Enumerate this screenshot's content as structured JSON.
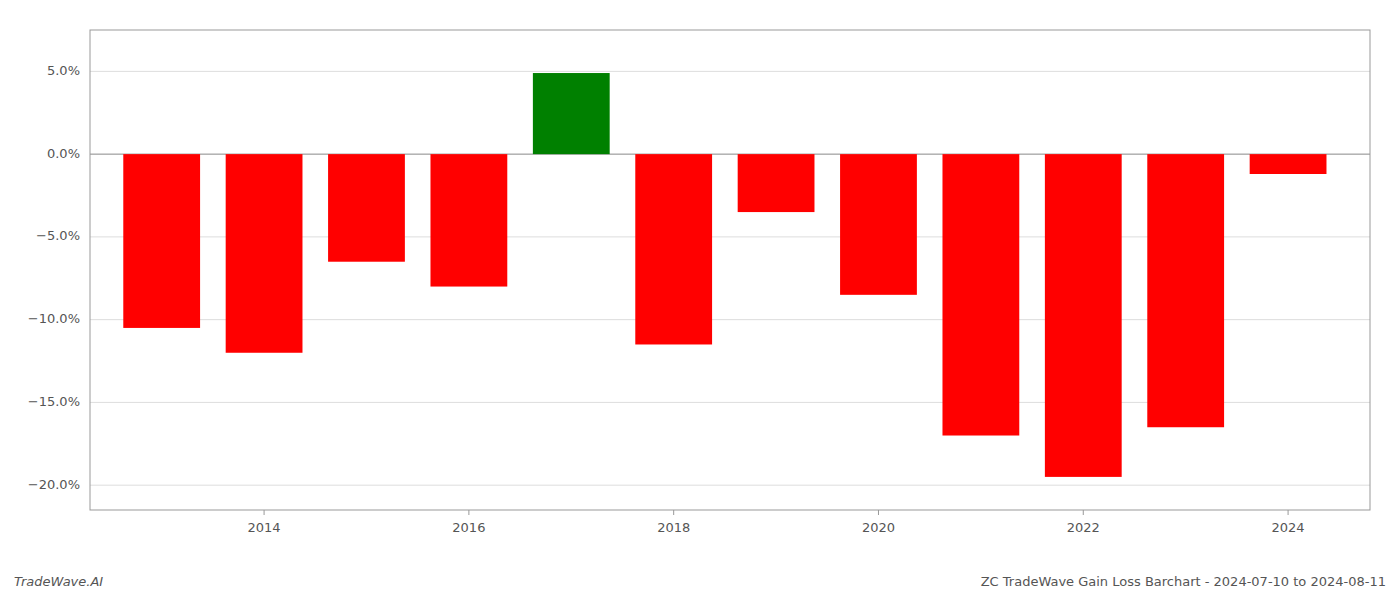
{
  "chart_data": {
    "type": "bar",
    "title": "ZC TradeWave Gain Loss Barchart - 2024-07-10 to 2024-08-11",
    "annotations": [
      "TradeWave.AI"
    ],
    "x": [
      2013,
      2014,
      2015,
      2016,
      2017,
      2018,
      2019,
      2020,
      2021,
      2022,
      2023,
      2024
    ],
    "values": [
      -10.5,
      -12.0,
      -6.5,
      -8.0,
      4.9,
      -11.5,
      -3.5,
      -8.5,
      -17.0,
      -19.5,
      -16.5,
      -1.2
    ],
    "colors": [
      "#ff0000",
      "#ff0000",
      "#ff0000",
      "#ff0000",
      "#008000",
      "#ff0000",
      "#ff0000",
      "#ff0000",
      "#ff0000",
      "#ff0000",
      "#ff0000",
      "#ff0000"
    ],
    "xlim": [
      2012.3,
      2024.8
    ],
    "xticks": [
      2014,
      2016,
      2018,
      2020,
      2022,
      2024
    ],
    "ylim": [
      -21.5,
      7.5
    ],
    "yticks": [
      {
        "value": -20.0,
        "label": "−20.0%"
      },
      {
        "value": -15.0,
        "label": "−15.0%"
      },
      {
        "value": -10.0,
        "label": "−10.0%"
      },
      {
        "value": -5.0,
        "label": "−5.0%"
      },
      {
        "value": 0.0,
        "label": "0.0%"
      },
      {
        "value": 5.0,
        "label": "5.0%"
      }
    ],
    "grid": true
  }
}
